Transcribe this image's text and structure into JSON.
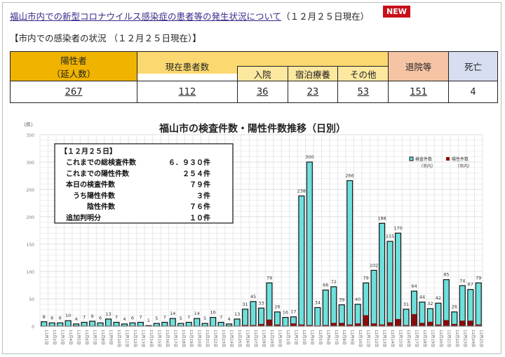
{
  "header": {
    "link": "福山市内での新型コロナウイルス感染症の患者等の発生状況について",
    "date": "（１２月２５日現在）",
    "badge": "NEW"
  },
  "status": {
    "title": "【市内での感染者の状況 （１２月２５日現在）】",
    "headers": {
      "positive": "陽性者",
      "positive_sub": "（延人数）",
      "current": "現在患者数",
      "hospital": "入院",
      "lodging": "宿泊療養",
      "other": "その他",
      "discharged": "退院等",
      "death": "死亡"
    },
    "values": {
      "positive": "267",
      "current": "112",
      "hospital": "36",
      "lodging": "23",
      "other": "53",
      "discharged": "151",
      "death": "4"
    }
  },
  "info_box": {
    "title": "【１２月２５日】",
    "rows": [
      [
        "これまでの総検査件数",
        "６．９３０件"
      ],
      [
        "これまでの陽性件数",
        "２５４件"
      ],
      [
        "本日の検査件数",
        "７９件"
      ],
      [
        "　うち陽性件数",
        "３件"
      ],
      [
        "　　　陰性件数",
        "７６件"
      ],
      [
        "追加判明分",
        "１０件"
      ]
    ]
  },
  "chart_data": {
    "type": "bar",
    "title": "福山市の検査件数・陽性件数推移（日別）",
    "ylabel": "（件）",
    "ylim": [
      0,
      350
    ],
    "yticks": [
      0,
      50,
      100,
      150,
      200,
      250,
      300,
      350
    ],
    "legend_position": "top-right",
    "categories": [
      "11月1日",
      "11月2日",
      "11月3日",
      "11月4日",
      "11月5日",
      "11月6日",
      "11月7日",
      "11月8日",
      "11月9日",
      "11月10日",
      "11月11日",
      "11月12日",
      "11月13日",
      "11月14日",
      "11月15日",
      "11月16日",
      "11月17日",
      "11月18日",
      "11月19日",
      "11月20日",
      "11月21日",
      "11月22日",
      "11月23日",
      "11月24日",
      "11月25日",
      "11月26日",
      "11月27日",
      "11月28日",
      "11月29日",
      "11月30日",
      "12月1日",
      "12月2日",
      "12月3日",
      "12月4日",
      "12月5日",
      "12月6日",
      "12月7日",
      "12月8日",
      "12月9日",
      "12月10日",
      "12月11日",
      "12月12日",
      "12月13日",
      "12月14日",
      "12月15日",
      "12月16日",
      "12月17日",
      "12月18日",
      "12月19日",
      "12月20日",
      "12月21日",
      "12月22日",
      "12月23日",
      "12月24日",
      "12月25日"
    ],
    "series": [
      {
        "name": "検査件数",
        "name_sub": "（市内）",
        "color": "#6ee0dc",
        "values": [
          8,
          6,
          6,
          10,
          4,
          7,
          9,
          6,
          13,
          7,
          4,
          6,
          7,
          1,
          5,
          7,
          14,
          5,
          7,
          14,
          5,
          16,
          7,
          4,
          13,
          31,
          45,
          33,
          79,
          26,
          16,
          17,
          238,
          300,
          34,
          66,
          72,
          39,
          266,
          40,
          79,
          102,
          188,
          155,
          170,
          31,
          64,
          44,
          32,
          42,
          85,
          26,
          74,
          67,
          79
        ]
      },
      {
        "name": "陽性件数",
        "name_sub": "（市内）",
        "color": "#8b0a0a",
        "values": [
          0,
          0,
          0,
          0,
          1,
          0,
          0,
          0,
          0,
          0,
          0,
          0,
          0,
          1,
          0,
          0,
          1,
          0,
          0,
          0,
          0,
          0,
          0,
          1,
          0,
          2,
          2,
          4,
          12,
          3,
          1,
          5,
          3,
          2,
          1,
          2,
          6,
          6,
          3,
          5,
          20,
          5,
          3,
          7,
          13,
          2,
          22,
          6,
          8,
          3,
          11,
          4,
          10,
          10,
          3
        ]
      }
    ]
  }
}
